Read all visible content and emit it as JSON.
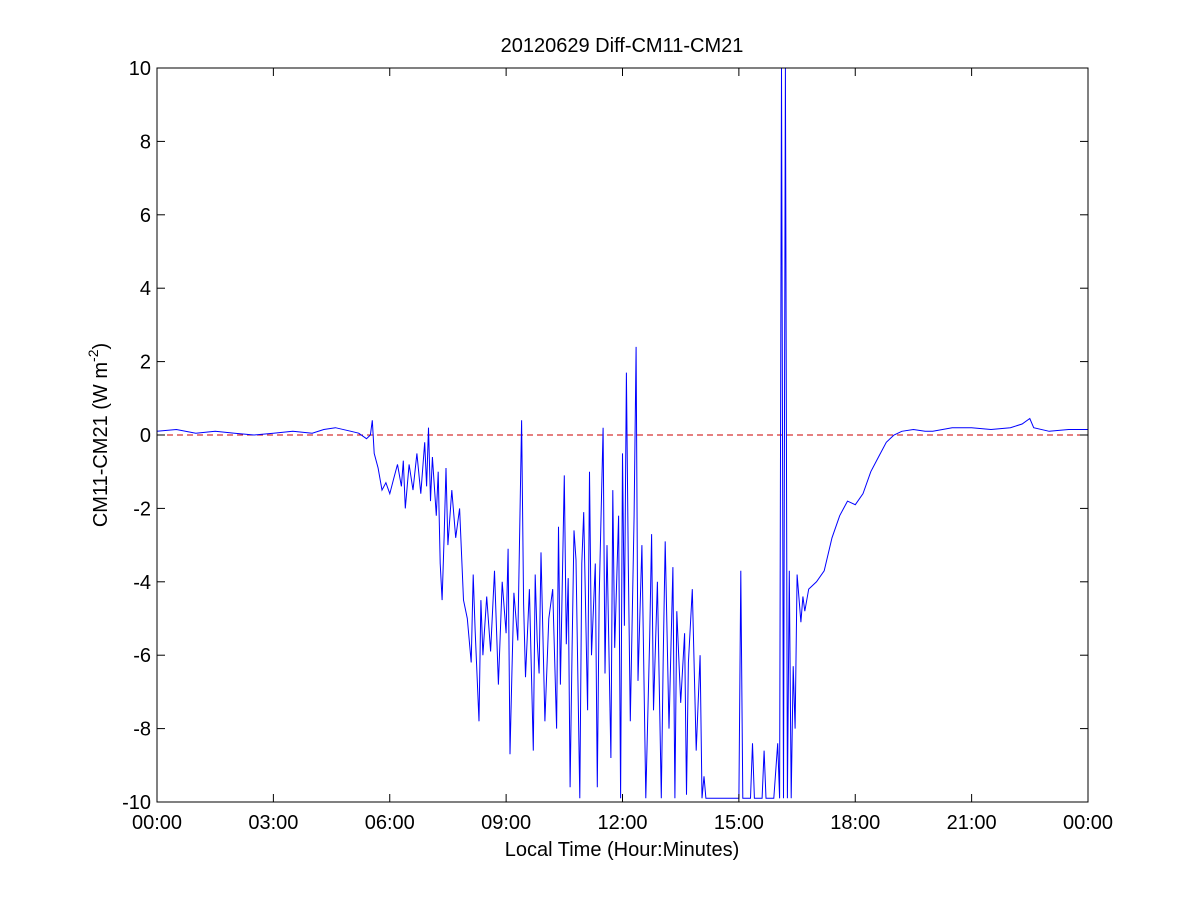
{
  "chart_data": {
    "type": "line",
    "title": "20120629 Diff-CM11-CM21",
    "xlabel": "Local Time (Hour:Minutes)",
    "ylabel": {
      "prefix": "CM11-CM21 (W m",
      "superscript": "-2",
      "suffix": ")"
    },
    "x_unit": "hours",
    "xlim": [
      0,
      24
    ],
    "ylim": [
      -10,
      10
    ],
    "x_ticks": [
      0,
      3,
      6,
      9,
      12,
      15,
      18,
      21,
      24
    ],
    "x_tick_labels": [
      "00:00",
      "03:00",
      "06:00",
      "09:00",
      "12:00",
      "15:00",
      "18:00",
      "21:00",
      "00:00"
    ],
    "y_ticks": [
      -10,
      -8,
      -6,
      -4,
      -2,
      0,
      2,
      4,
      6,
      8,
      10
    ],
    "y_tick_labels": [
      "-10",
      "-8",
      "-6",
      "-4",
      "-2",
      "0",
      "2",
      "4",
      "6",
      "8",
      "10"
    ],
    "grid": false,
    "reference_line": {
      "y": 0,
      "color": "#cc0000",
      "style": "dashed"
    },
    "series": [
      {
        "color": "#0000ff",
        "points": [
          [
            0.0,
            0.1
          ],
          [
            0.5,
            0.15
          ],
          [
            1.0,
            0.05
          ],
          [
            1.5,
            0.1
          ],
          [
            2.0,
            0.05
          ],
          [
            2.5,
            0.0
          ],
          [
            3.0,
            0.05
          ],
          [
            3.5,
            0.1
          ],
          [
            4.0,
            0.05
          ],
          [
            4.3,
            0.15
          ],
          [
            4.6,
            0.2
          ],
          [
            5.0,
            0.1
          ],
          [
            5.2,
            0.05
          ],
          [
            5.4,
            -0.1
          ],
          [
            5.5,
            0.0
          ],
          [
            5.55,
            0.4
          ],
          [
            5.6,
            -0.5
          ],
          [
            5.7,
            -0.9
          ],
          [
            5.8,
            -1.5
          ],
          [
            5.9,
            -1.3
          ],
          [
            6.0,
            -1.6
          ],
          [
            6.1,
            -1.2
          ],
          [
            6.2,
            -0.8
          ],
          [
            6.3,
            -1.4
          ],
          [
            6.35,
            -0.7
          ],
          [
            6.4,
            -2.0
          ],
          [
            6.5,
            -0.8
          ],
          [
            6.6,
            -1.5
          ],
          [
            6.7,
            -0.5
          ],
          [
            6.8,
            -1.6
          ],
          [
            6.9,
            -0.2
          ],
          [
            6.95,
            -1.4
          ],
          [
            7.0,
            0.2
          ],
          [
            7.05,
            -1.8
          ],
          [
            7.1,
            -0.6
          ],
          [
            7.2,
            -2.2
          ],
          [
            7.25,
            -1.0
          ],
          [
            7.3,
            -3.5
          ],
          [
            7.35,
            -4.5
          ],
          [
            7.4,
            -2.8
          ],
          [
            7.45,
            -0.9
          ],
          [
            7.5,
            -3.0
          ],
          [
            7.6,
            -1.5
          ],
          [
            7.7,
            -2.8
          ],
          [
            7.8,
            -2.0
          ],
          [
            7.9,
            -4.5
          ],
          [
            8.0,
            -5.0
          ],
          [
            8.1,
            -6.2
          ],
          [
            8.15,
            -3.8
          ],
          [
            8.2,
            -5.3
          ],
          [
            8.3,
            -7.8
          ],
          [
            8.35,
            -4.5
          ],
          [
            8.4,
            -6.0
          ],
          [
            8.5,
            -4.4
          ],
          [
            8.6,
            -5.9
          ],
          [
            8.7,
            -3.7
          ],
          [
            8.8,
            -6.8
          ],
          [
            8.9,
            -4.0
          ],
          [
            9.0,
            -5.4
          ],
          [
            9.05,
            -3.1
          ],
          [
            9.1,
            -8.7
          ],
          [
            9.15,
            -6.5
          ],
          [
            9.2,
            -4.3
          ],
          [
            9.3,
            -5.6
          ],
          [
            9.4,
            0.4
          ],
          [
            9.45,
            -4.6
          ],
          [
            9.5,
            -6.6
          ],
          [
            9.6,
            -4.2
          ],
          [
            9.7,
            -8.6
          ],
          [
            9.75,
            -3.8
          ],
          [
            9.8,
            -5.6
          ],
          [
            9.85,
            -6.5
          ],
          [
            9.9,
            -3.2
          ],
          [
            10.0,
            -7.8
          ],
          [
            10.1,
            -5.0
          ],
          [
            10.2,
            -4.2
          ],
          [
            10.3,
            -8.0
          ],
          [
            10.35,
            -2.5
          ],
          [
            10.4,
            -6.8
          ],
          [
            10.5,
            -1.1
          ],
          [
            10.55,
            -5.7
          ],
          [
            10.6,
            -3.9
          ],
          [
            10.65,
            -9.6
          ],
          [
            10.7,
            -5.8
          ],
          [
            10.75,
            -2.6
          ],
          [
            10.8,
            -3.4
          ],
          [
            10.9,
            -9.9
          ],
          [
            10.95,
            -3.5
          ],
          [
            11.0,
            -2.1
          ],
          [
            11.1,
            -7.5
          ],
          [
            11.15,
            -1.0
          ],
          [
            11.2,
            -6.0
          ],
          [
            11.3,
            -3.5
          ],
          [
            11.35,
            -9.6
          ],
          [
            11.4,
            -4.4
          ],
          [
            11.5,
            0.2
          ],
          [
            11.55,
            -6.5
          ],
          [
            11.6,
            -3.0
          ],
          [
            11.7,
            -8.8
          ],
          [
            11.75,
            -1.5
          ],
          [
            11.8,
            -5.8
          ],
          [
            11.9,
            -2.2
          ],
          [
            11.95,
            -9.9
          ],
          [
            12.0,
            -0.5
          ],
          [
            12.05,
            -5.2
          ],
          [
            12.1,
            1.7
          ],
          [
            12.15,
            -3.5
          ],
          [
            12.2,
            -7.8
          ],
          [
            12.3,
            -2.2
          ],
          [
            12.35,
            2.4
          ],
          [
            12.4,
            -6.7
          ],
          [
            12.5,
            -3.0
          ],
          [
            12.6,
            -9.9
          ],
          [
            12.7,
            -5.5
          ],
          [
            12.75,
            -2.7
          ],
          [
            12.8,
            -7.5
          ],
          [
            12.9,
            -4.0
          ],
          [
            13.0,
            -9.9
          ],
          [
            13.05,
            -6.1
          ],
          [
            13.1,
            -2.9
          ],
          [
            13.2,
            -8.0
          ],
          [
            13.3,
            -3.6
          ],
          [
            13.35,
            -9.9
          ],
          [
            13.4,
            -4.8
          ],
          [
            13.5,
            -7.3
          ],
          [
            13.6,
            -5.4
          ],
          [
            13.65,
            -9.8
          ],
          [
            13.7,
            -6.2
          ],
          [
            13.8,
            -4.2
          ],
          [
            13.9,
            -8.6
          ],
          [
            14.0,
            -6.0
          ],
          [
            14.05,
            -9.9
          ],
          [
            14.1,
            -9.3
          ],
          [
            14.15,
            -9.9
          ],
          [
            15.0,
            -9.9
          ],
          [
            15.05,
            -3.7
          ],
          [
            15.1,
            -9.9
          ],
          [
            15.3,
            -9.9
          ],
          [
            15.35,
            -8.4
          ],
          [
            15.4,
            -9.9
          ],
          [
            15.6,
            -9.9
          ],
          [
            15.65,
            -8.6
          ],
          [
            15.7,
            -9.9
          ],
          [
            15.9,
            -9.9
          ],
          [
            16.0,
            -8.4
          ],
          [
            16.05,
            -9.9
          ],
          [
            16.1,
            10.0
          ],
          [
            16.15,
            -9.9
          ],
          [
            16.2,
            10.0
          ],
          [
            16.25,
            -9.9
          ],
          [
            16.3,
            -3.7
          ],
          [
            16.35,
            -9.9
          ],
          [
            16.4,
            -6.3
          ],
          [
            16.45,
            -8.0
          ],
          [
            16.5,
            -3.8
          ],
          [
            16.6,
            -5.1
          ],
          [
            16.65,
            -4.4
          ],
          [
            16.7,
            -4.8
          ],
          [
            16.8,
            -4.2
          ],
          [
            17.0,
            -4.0
          ],
          [
            17.2,
            -3.7
          ],
          [
            17.4,
            -2.8
          ],
          [
            17.6,
            -2.2
          ],
          [
            17.8,
            -1.8
          ],
          [
            18.0,
            -1.9
          ],
          [
            18.2,
            -1.6
          ],
          [
            18.4,
            -1.0
          ],
          [
            18.6,
            -0.6
          ],
          [
            18.8,
            -0.2
          ],
          [
            19.0,
            0.0
          ],
          [
            19.2,
            0.1
          ],
          [
            19.5,
            0.15
          ],
          [
            19.8,
            0.1
          ],
          [
            20.0,
            0.1
          ],
          [
            20.5,
            0.2
          ],
          [
            21.0,
            0.2
          ],
          [
            21.5,
            0.15
          ],
          [
            22.0,
            0.2
          ],
          [
            22.3,
            0.3
          ],
          [
            22.5,
            0.45
          ],
          [
            22.6,
            0.2
          ],
          [
            23.0,
            0.1
          ],
          [
            23.5,
            0.15
          ],
          [
            24.0,
            0.15
          ]
        ]
      }
    ]
  }
}
